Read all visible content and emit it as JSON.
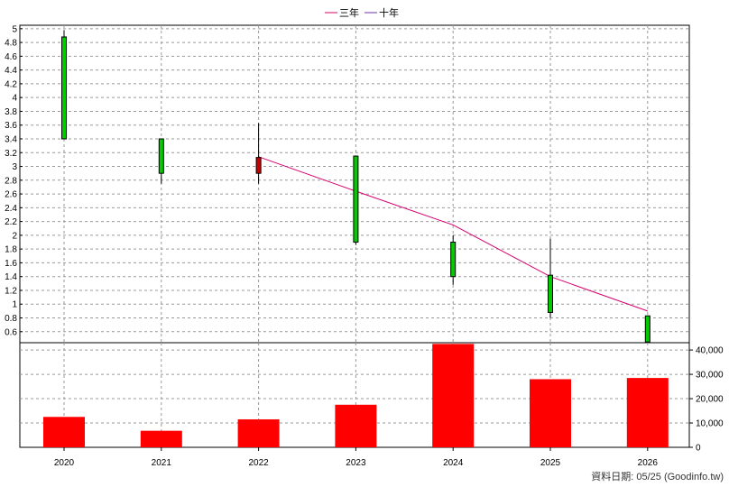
{
  "chart_data": {
    "type": "candlestick-with-volume",
    "legend": [
      {
        "name": "三年",
        "color": "#d6006f"
      },
      {
        "name": "十年",
        "color": "#7030a0"
      }
    ],
    "years": [
      "2020",
      "2021",
      "2022",
      "2023",
      "2024",
      "2025",
      "2026"
    ],
    "price_axis": {
      "ylim": [
        0.44,
        5.05
      ],
      "ticks": [
        0.6,
        0.8,
        1,
        1.2,
        1.4,
        1.6,
        1.8,
        2,
        2.2,
        2.4,
        2.6,
        2.8,
        3,
        3.2,
        3.4,
        3.6,
        3.8,
        4,
        4.2,
        4.4,
        4.6,
        4.8,
        5
      ],
      "tick_labels": [
        "0.6",
        "0.8",
        "1",
        "1.2",
        "1.4",
        "1.6",
        "1.8",
        "2",
        "2.2",
        "2.4",
        "2.6",
        "2.8",
        "3",
        "3.2",
        "3.4",
        "3.6",
        "3.8",
        "4",
        "4.2",
        "4.4",
        "4.6",
        "4.8",
        "5"
      ]
    },
    "candles": [
      {
        "year": "2020",
        "open": 3.4,
        "close": 4.88,
        "high": 4.98,
        "low": 3.4,
        "color": "#00cc00"
      },
      {
        "year": "2021",
        "open": 2.9,
        "close": 3.4,
        "high": 3.4,
        "low": 2.75,
        "color": "#00cc00"
      },
      {
        "year": "2022",
        "open": 3.13,
        "close": 2.9,
        "high": 3.63,
        "low": 2.75,
        "color": "#cc0000"
      },
      {
        "year": "2023",
        "open": 1.9,
        "close": 3.15,
        "high": 3.15,
        "low": 1.86,
        "color": "#00cc00"
      },
      {
        "year": "2024",
        "open": 1.4,
        "close": 1.9,
        "high": 2.0,
        "low": 1.28,
        "color": "#00cc00"
      },
      {
        "year": "2025",
        "open": 0.88,
        "close": 1.42,
        "high": 1.95,
        "low": 0.8,
        "color": "#00cc00"
      },
      {
        "year": "2026",
        "open": 0.45,
        "close": 0.83,
        "high": 0.83,
        "low": 0.45,
        "color": "#00cc00"
      }
    ],
    "ma_three_year": {
      "name": "三年",
      "points": [
        {
          "year": "2022",
          "value": 3.14
        },
        {
          "year": "2023",
          "value": 2.64
        },
        {
          "year": "2024",
          "value": 2.15
        },
        {
          "year": "2025",
          "value": 1.4
        },
        {
          "year": "2026",
          "value": 0.9
        }
      ]
    },
    "volume_axis": {
      "ylim": [
        0,
        43000
      ],
      "ticks": [
        0,
        10000,
        20000,
        30000,
        40000
      ],
      "tick_labels": [
        "0",
        "10,000",
        "20,000",
        "30,000",
        "40,000"
      ]
    },
    "volumes": [
      {
        "year": "2020",
        "value": 12500
      },
      {
        "year": "2021",
        "value": 6800
      },
      {
        "year": "2022",
        "value": 11500
      },
      {
        "year": "2023",
        "value": 17500
      },
      {
        "year": "2024",
        "value": 42500
      },
      {
        "year": "2025",
        "value": 28000
      },
      {
        "year": "2026",
        "value": 28500
      }
    ],
    "volume_color": "#ff0000"
  },
  "footer": "資料日期: 05/25  (Goodinfo.tw)"
}
